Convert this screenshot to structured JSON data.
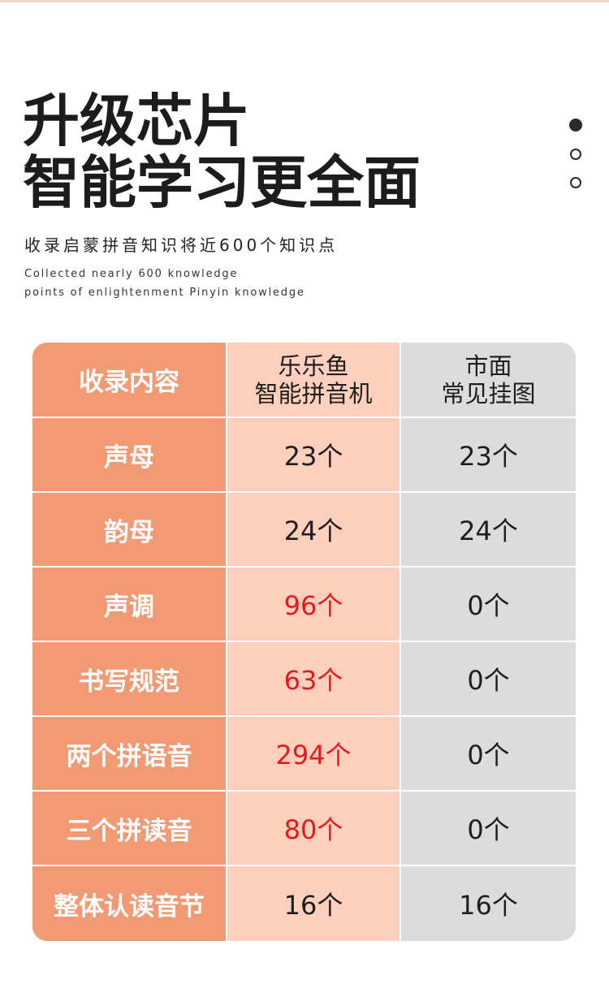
{
  "header": {
    "title_line1": "升级芯片",
    "title_line2": "智能学习更全面",
    "subtitle": "收录启蒙拼音知识将近600个知识点",
    "english_line1": "Collected nearly 600 knowledge",
    "english_line2": "points of enlightenment Pinyin knowledge"
  },
  "pager": {
    "count": 3,
    "active_index": 0
  },
  "table": {
    "headers": {
      "col1": "收录内容",
      "col2_line1": "乐乐鱼",
      "col2_line2": "智能拼音机",
      "col3_line1": "市面",
      "col3_line2": "常见挂图"
    },
    "rows": [
      {
        "item": "声母",
        "device": "23个",
        "chart": "23个",
        "highlight": false
      },
      {
        "item": "韵母",
        "device": "24个",
        "chart": "24个",
        "highlight": false
      },
      {
        "item": "声调",
        "device": "96个",
        "chart": "0个",
        "highlight": true
      },
      {
        "item": "书写规范",
        "device": "63个",
        "chart": "0个",
        "highlight": true
      },
      {
        "item": "两个拼语音",
        "device": "294个",
        "chart": "0个",
        "highlight": true
      },
      {
        "item": "三个拼读音",
        "device": "80个",
        "chart": "0个",
        "highlight": true
      },
      {
        "item": "整体认读音节",
        "device": "16个",
        "chart": "16个",
        "highlight": false
      }
    ],
    "colors": {
      "label_column": "#f29a73",
      "device_column": "#fdd0bd",
      "chart_column": "#dcdcdc",
      "highlight_text": "#e8191a"
    }
  }
}
